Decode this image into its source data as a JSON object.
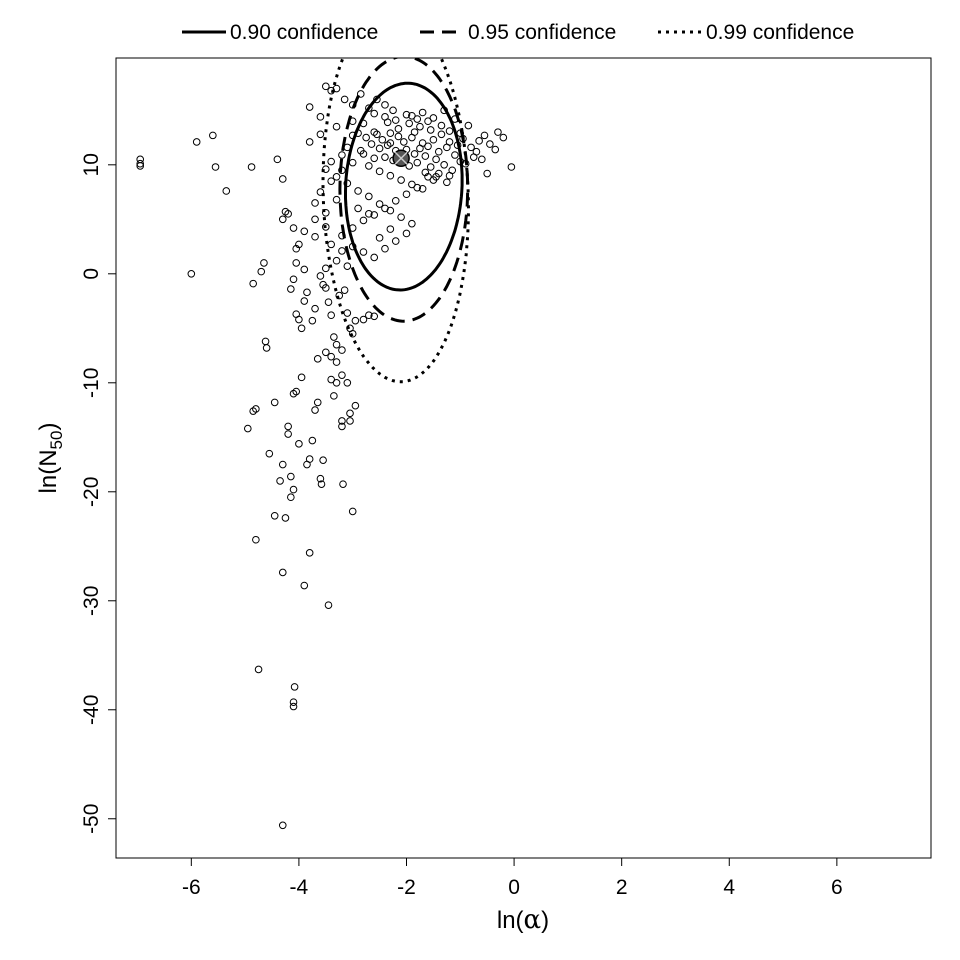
{
  "chart_data": {
    "type": "scatter",
    "title": "",
    "xlabel": {
      "prefix": "ln(",
      "symbol": "α",
      "suffix": ")"
    },
    "ylabel": {
      "prefix": "ln(N",
      "subscript": "50",
      "suffix": ")"
    },
    "xlim": [
      -7.4,
      7.75
    ],
    "ylim": [
      -53.6,
      19.8
    ],
    "xticks": [
      -6,
      -4,
      -2,
      0,
      2,
      4,
      6
    ],
    "yticks": [
      -50,
      -40,
      -30,
      -20,
      -10,
      0,
      10
    ],
    "xtick_labels": [
      "-6",
      "-4",
      "-2",
      "0",
      "2",
      "4",
      "6"
    ],
    "ytick_labels": [
      "-50",
      "-40",
      "-30",
      "-20",
      "-10",
      "0",
      "10"
    ],
    "grid": false,
    "legend_position": "top",
    "legend": [
      {
        "label": "0.90 confidence",
        "style": "solid"
      },
      {
        "label": "0.95 confidence",
        "style": "dashed"
      },
      {
        "label": "0.99 confidence",
        "style": "dotted"
      }
    ],
    "estimate": {
      "x": -2.1,
      "y": 10.6
    },
    "contours": [
      {
        "label": "0.90 confidence",
        "style": "solid",
        "center": [
          -2.05,
          8.0
        ],
        "a": 1.25,
        "b": 2.7,
        "angle_deg": 31
      },
      {
        "label": "0.95 confidence",
        "style": "dashed",
        "center": [
          -2.05,
          7.8
        ],
        "a": 1.35,
        "b": 3.45,
        "angle_deg": 30
      },
      {
        "label": "0.99 confidence",
        "style": "dotted",
        "center": [
          -2.2,
          7.2
        ],
        "a": 1.5,
        "b": 4.8,
        "angle_deg": 28
      }
    ],
    "points": [
      [
        -6.95,
        10.5
      ],
      [
        -6.95,
        10.1
      ],
      [
        -6.95,
        9.9
      ],
      [
        -5.9,
        12.1
      ],
      [
        -5.6,
        12.7
      ],
      [
        -5.55,
        9.8
      ],
      [
        -5.35,
        7.6
      ],
      [
        -4.95,
        -14.2
      ],
      [
        -4.85,
        -12.6
      ],
      [
        -4.8,
        -12.4
      ],
      [
        -4.88,
        9.8
      ],
      [
        -4.85,
        -0.9
      ],
      [
        -4.8,
        -24.4
      ],
      [
        -4.75,
        -36.3
      ],
      [
        -4.7,
        0.2
      ],
      [
        -4.65,
        1.0
      ],
      [
        -4.62,
        -6.2
      ],
      [
        -4.6,
        -6.8
      ],
      [
        -4.55,
        -16.5
      ],
      [
        -4.45,
        -22.2
      ],
      [
        -4.45,
        -11.8
      ],
      [
        -4.4,
        10.5
      ],
      [
        -4.35,
        -19.0
      ],
      [
        -4.3,
        -17.5
      ],
      [
        -4.3,
        -27.4
      ],
      [
        -4.3,
        -50.6
      ],
      [
        -4.25,
        -22.4
      ],
      [
        -4.2,
        -14.0
      ],
      [
        -4.2,
        -14.7
      ],
      [
        -4.15,
        -18.6
      ],
      [
        -4.15,
        -20.5
      ],
      [
        -4.1,
        -19.8
      ],
      [
        -4.1,
        -11.0
      ],
      [
        -4.1,
        -39.3
      ],
      [
        -4.1,
        -39.7
      ],
      [
        -4.08,
        -37.9
      ],
      [
        -4.05,
        -10.8
      ],
      [
        -4.0,
        -15.6
      ],
      [
        -3.95,
        -9.5
      ],
      [
        -3.9,
        -28.6
      ],
      [
        -3.85,
        -17.5
      ],
      [
        -3.8,
        -25.6
      ],
      [
        -3.8,
        -17.0
      ],
      [
        -3.75,
        -15.3
      ],
      [
        -3.7,
        -12.5
      ],
      [
        -3.65,
        -11.8
      ],
      [
        -3.6,
        -18.8
      ],
      [
        -3.58,
        -19.3
      ],
      [
        -3.55,
        -17.1
      ],
      [
        -3.45,
        -30.4
      ],
      [
        -3.4,
        -9.7
      ],
      [
        -3.35,
        -11.2
      ],
      [
        -3.3,
        -10.0
      ],
      [
        -3.2,
        -14.0
      ],
      [
        -3.18,
        -19.3
      ],
      [
        -3.2,
        -13.5
      ],
      [
        -3.1,
        -10.0
      ],
      [
        -3.05,
        -12.8
      ],
      [
        -3.0,
        -21.8
      ],
      [
        -2.95,
        -12.1
      ],
      [
        -3.05,
        -13.5
      ],
      [
        -3.2,
        -9.3
      ],
      [
        -4.3,
        8.7
      ],
      [
        -4.25,
        5.7
      ],
      [
        -4.3,
        5.0
      ],
      [
        -4.2,
        5.5
      ],
      [
        -4.1,
        4.2
      ],
      [
        -4.05,
        2.3
      ],
      [
        -4.0,
        2.7
      ],
      [
        -4.15,
        -1.4
      ],
      [
        -4.1,
        -0.5
      ],
      [
        -4.05,
        -3.7
      ],
      [
        -4.0,
        -4.2
      ],
      [
        -3.95,
        -5.0
      ],
      [
        -3.9,
        -2.5
      ],
      [
        -3.85,
        -1.7
      ],
      [
        -3.75,
        -4.3
      ],
      [
        -3.7,
        -3.2
      ],
      [
        -3.65,
        -7.8
      ],
      [
        -3.55,
        -1.0
      ],
      [
        -3.5,
        -1.3
      ],
      [
        -3.45,
        -2.6
      ],
      [
        -3.4,
        -3.8
      ],
      [
        -3.35,
        -5.8
      ],
      [
        -3.3,
        -6.5
      ],
      [
        -3.25,
        -2.0
      ],
      [
        -3.15,
        -1.5
      ],
      [
        -3.1,
        -3.6
      ],
      [
        -3.05,
        -5.0
      ],
      [
        -2.95,
        -4.3
      ],
      [
        -2.8,
        -4.2
      ],
      [
        -2.7,
        -3.8
      ],
      [
        -2.6,
        -3.9
      ],
      [
        -3.5,
        -7.2
      ],
      [
        -3.4,
        -7.6
      ],
      [
        -3.3,
        -8.1
      ],
      [
        -3.2,
        -7.0
      ],
      [
        -3.0,
        -5.5
      ],
      [
        -3.8,
        15.3
      ],
      [
        -3.6,
        14.4
      ],
      [
        -3.5,
        17.2
      ],
      [
        -3.4,
        16.8
      ],
      [
        -3.3,
        17.0
      ],
      [
        -3.15,
        16.0
      ],
      [
        -3.0,
        15.5
      ],
      [
        -2.85,
        16.5
      ],
      [
        -2.7,
        15.2
      ],
      [
        -2.55,
        16.0
      ],
      [
        -2.4,
        15.5
      ],
      [
        -2.25,
        15.0
      ],
      [
        -1.9,
        14.5
      ],
      [
        -1.6,
        14.0
      ],
      [
        -1.3,
        15.0
      ],
      [
        -1.1,
        14.2
      ],
      [
        -0.85,
        13.6
      ],
      [
        -0.3,
        13.0
      ],
      [
        -0.2,
        12.5
      ],
      [
        -0.05,
        9.8
      ],
      [
        -0.6,
        10.5
      ],
      [
        -0.5,
        9.2
      ],
      [
        -0.7,
        11.2
      ],
      [
        -0.9,
        10.1
      ],
      [
        -1.2,
        9.0
      ],
      [
        -1.5,
        8.6
      ],
      [
        -1.8,
        7.9
      ],
      [
        -2.0,
        7.3
      ],
      [
        -2.2,
        6.7
      ],
      [
        -2.4,
        6.0
      ],
      [
        -2.6,
        5.4
      ],
      [
        -2.8,
        4.9
      ],
      [
        -3.0,
        4.2
      ],
      [
        -3.2,
        3.5
      ],
      [
        -3.0,
        2.5
      ],
      [
        -2.8,
        2.0
      ],
      [
        -2.6,
        1.5
      ],
      [
        -2.4,
        2.3
      ],
      [
        -2.2,
        3.0
      ],
      [
        -2.0,
        3.7
      ],
      [
        -3.3,
        1.2
      ],
      [
        -3.1,
        0.7
      ],
      [
        -3.5,
        0.5
      ],
      [
        -3.6,
        -0.2
      ],
      [
        -3.9,
        0.4
      ],
      [
        -4.05,
        1.0
      ],
      [
        -3.7,
        6.5
      ],
      [
        -3.6,
        7.5
      ],
      [
        -3.4,
        8.5
      ],
      [
        -3.2,
        9.5
      ],
      [
        -3.0,
        10.2
      ],
      [
        -2.8,
        11.0
      ],
      [
        -3.8,
        12.1
      ],
      [
        -3.6,
        12.8
      ],
      [
        -3.3,
        13.5
      ],
      [
        -3.0,
        14.0
      ],
      [
        -2.6,
        13.0
      ],
      [
        -2.3,
        12.0
      ],
      [
        -3.7,
        3.4
      ],
      [
        -3.5,
        4.3
      ],
      [
        -3.9,
        3.9
      ],
      [
        -6.0,
        0.0
      ],
      [
        -1.9,
        12.5
      ],
      [
        -1.85,
        11.0
      ],
      [
        -1.8,
        10.2
      ],
      [
        -1.75,
        11.5
      ],
      [
        -1.7,
        12.0
      ],
      [
        -1.65,
        10.8
      ],
      [
        -1.6,
        11.7
      ],
      [
        -1.55,
        9.8
      ],
      [
        -1.5,
        12.3
      ],
      [
        -1.45,
        10.5
      ],
      [
        -1.4,
        11.2
      ],
      [
        -1.35,
        12.8
      ],
      [
        -1.3,
        10.0
      ],
      [
        -1.25,
        11.6
      ],
      [
        -1.2,
        12.1
      ],
      [
        -1.15,
        9.5
      ],
      [
        -1.1,
        10.9
      ],
      [
        -1.05,
        11.8
      ],
      [
        -1.0,
        10.3
      ],
      [
        -0.95,
        12.4
      ],
      [
        -2.0,
        11.4
      ],
      [
        -2.05,
        12.1
      ],
      [
        -2.1,
        10.9
      ],
      [
        -2.15,
        12.6
      ],
      [
        -2.2,
        11.3
      ],
      [
        -2.25,
        10.4
      ],
      [
        -2.3,
        12.9
      ],
      [
        -2.35,
        11.8
      ],
      [
        -2.4,
        10.7
      ],
      [
        -2.45,
        12.3
      ],
      [
        -2.5,
        11.5
      ],
      [
        -1.95,
        9.9
      ],
      [
        -1.85,
        13.0
      ],
      [
        -1.75,
        13.5
      ],
      [
        -1.65,
        9.3
      ],
      [
        -1.55,
        13.2
      ],
      [
        -1.45,
        8.9
      ],
      [
        -1.35,
        13.6
      ],
      [
        -1.25,
        8.4
      ],
      [
        -1.95,
        13.8
      ],
      [
        -2.15,
        13.3
      ],
      [
        -2.35,
        13.9
      ],
      [
        -2.55,
        12.8
      ],
      [
        -2.65,
        11.9
      ],
      [
        -2.75,
        12.5
      ],
      [
        -2.85,
        11.3
      ],
      [
        -2.9,
        12.9
      ],
      [
        -2.6,
        10.6
      ],
      [
        -2.7,
        9.9
      ],
      [
        -2.5,
        9.4
      ],
      [
        -2.3,
        9.0
      ],
      [
        -2.1,
        8.6
      ],
      [
        -1.9,
        8.2
      ],
      [
        -1.7,
        7.8
      ],
      [
        -1.6,
        8.9
      ],
      [
        -1.4,
        9.2
      ],
      [
        -1.2,
        13.1
      ],
      [
        -1.0,
        12.9
      ],
      [
        -0.8,
        11.6
      ],
      [
        -0.75,
        10.7
      ],
      [
        -0.65,
        12.2
      ],
      [
        -0.45,
        11.9
      ],
      [
        -0.35,
        11.4
      ],
      [
        -0.55,
        12.7
      ],
      [
        -1.8,
        14.2
      ],
      [
        -2.0,
        14.6
      ],
      [
        -2.2,
        14.1
      ],
      [
        -2.4,
        14.4
      ],
      [
        -1.7,
        14.8
      ],
      [
        -1.5,
        14.3
      ],
      [
        -2.6,
        14.7
      ],
      [
        -2.8,
        13.8
      ],
      [
        -3.0,
        12.7
      ],
      [
        -3.1,
        11.6
      ],
      [
        -3.2,
        10.9
      ],
      [
        -3.4,
        10.3
      ],
      [
        -3.5,
        9.6
      ],
      [
        -3.3,
        8.9
      ],
      [
        -3.1,
        8.3
      ],
      [
        -2.9,
        7.6
      ],
      [
        -2.7,
        7.1
      ],
      [
        -2.5,
        6.4
      ],
      [
        -2.3,
        5.8
      ],
      [
        -2.1,
        5.2
      ],
      [
        -1.9,
        4.6
      ],
      [
        -2.9,
        6.0
      ],
      [
        -2.7,
        5.5
      ],
      [
        -3.3,
        6.8
      ],
      [
        -3.5,
        5.6
      ],
      [
        -3.7,
        5.0
      ],
      [
        -3.4,
        2.7
      ],
      [
        -3.2,
        2.1
      ],
      [
        -2.5,
        3.3
      ],
      [
        -2.3,
        4.1
      ]
    ]
  }
}
